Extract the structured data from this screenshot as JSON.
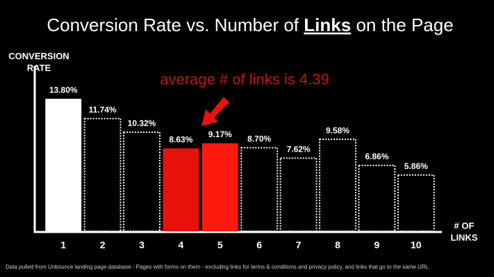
{
  "chart_data": {
    "type": "bar",
    "title": [
      "Conversion Rate vs. Number of",
      "Links",
      "on the Page"
    ],
    "y_label": [
      "CONVERSION",
      "RATE"
    ],
    "x_label": [
      "# OF",
      "LINKS"
    ],
    "annotation": "average # of links is 4.39",
    "footnote": "Data pulled from Unbounce landing page database - Pages with forms on them - excluding links for terms & conditions and privacy policy, and links that go to the same URL",
    "categories": [
      "1",
      "2",
      "3",
      "4",
      "5",
      "6",
      "7",
      "8",
      "9",
      "10"
    ],
    "values": [
      13.8,
      11.74,
      10.32,
      8.63,
      9.17,
      8.7,
      7.62,
      9.58,
      6.86,
      5.86
    ],
    "value_labels": [
      "13.80%",
      "11.74%",
      "10.32%",
      "8.63%",
      "9.17%",
      "8.70%",
      "7.62%",
      "9.58%",
      "6.86%",
      "5.86%"
    ],
    "fills": [
      "#ffffff",
      "none",
      "none",
      "#e8120c",
      "#ff1a0f",
      "none",
      "none",
      "none",
      "none",
      "none"
    ],
    "outline_color": "#ffffff",
    "ylim": [
      0,
      15
    ]
  }
}
